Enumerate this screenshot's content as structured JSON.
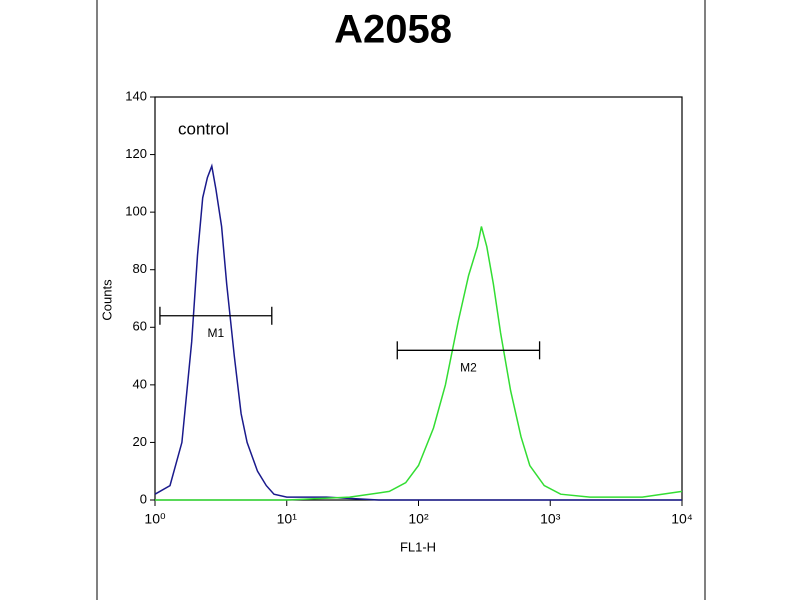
{
  "chart_data": {
    "type": "line",
    "title": "A2058",
    "xlabel": "FL1-H",
    "ylabel": "Counts",
    "annotation": "control",
    "xscale": "log",
    "xlim": [
      1,
      10000
    ],
    "xticks": [
      {
        "value": 1,
        "label": "10⁰"
      },
      {
        "value": 10,
        "label": "10¹"
      },
      {
        "value": 100,
        "label": "10²"
      },
      {
        "value": 1000,
        "label": "10³"
      },
      {
        "value": 10000,
        "label": "10⁴"
      }
    ],
    "ylim": [
      0,
      140
    ],
    "yticks": [
      0,
      20,
      40,
      60,
      80,
      100,
      120,
      140
    ],
    "series": [
      {
        "color": "#1a1a8c",
        "x": [
          1,
          1.3,
          1.6,
          1.9,
          2.1,
          2.3,
          2.5,
          2.7,
          2.9,
          3.2,
          3.5,
          4,
          4.5,
          5,
          6,
          7,
          8,
          10,
          20,
          50,
          100,
          1000,
          10000
        ],
        "values": [
          2,
          5,
          20,
          55,
          85,
          105,
          112,
          116,
          108,
          95,
          75,
          50,
          30,
          20,
          10,
          5,
          2,
          1,
          1,
          0,
          0,
          0,
          0
        ]
      },
      {
        "color": "#33dd33",
        "x": [
          1,
          10,
          30,
          60,
          80,
          100,
          130,
          160,
          200,
          240,
          280,
          300,
          330,
          370,
          420,
          500,
          600,
          700,
          900,
          1200,
          2000,
          5000,
          10000
        ],
        "values": [
          0,
          0,
          1,
          3,
          6,
          12,
          25,
          40,
          62,
          78,
          88,
          95,
          88,
          75,
          58,
          38,
          22,
          12,
          5,
          2,
          1,
          1,
          3
        ]
      }
    ],
    "markers": [
      {
        "label": "M1",
        "x": [
          1.09,
          7.7
        ],
        "y": 64
      },
      {
        "label": "M2",
        "x": [
          69,
          830
        ],
        "y": 52
      }
    ]
  }
}
